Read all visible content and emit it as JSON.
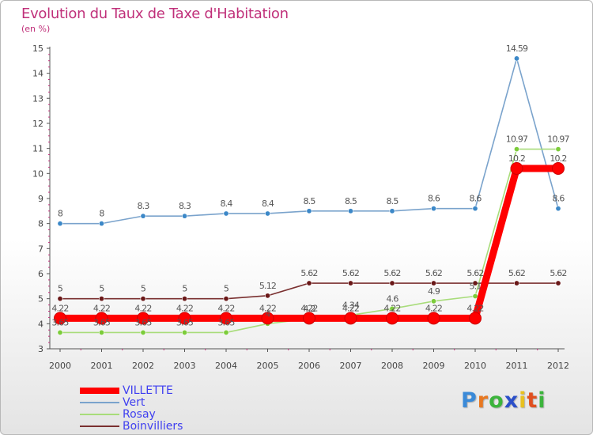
{
  "chart_data": {
    "type": "line",
    "title": "Evolution du Taux de Taxe d'Habitation",
    "subtitle": "(en %)",
    "x": [
      "2000",
      "2001",
      "2002",
      "2003",
      "2004",
      "2005",
      "2006",
      "2007",
      "2008",
      "2009",
      "2010",
      "2011",
      "2012"
    ],
    "ylim": [
      3,
      15
    ],
    "yticks": [
      3,
      4,
      5,
      6,
      7,
      8,
      9,
      10,
      11,
      12,
      13,
      14,
      15
    ],
    "grid": false,
    "legend_position": "bottom-left",
    "series": [
      {
        "name": "VILLETTE",
        "color": "#ff0000",
        "values": [
          4.22,
          4.22,
          4.22,
          4.22,
          4.22,
          4.22,
          4.22,
          4.22,
          4.22,
          4.22,
          4.22,
          10.2,
          10.2
        ],
        "labels": [
          "4.22",
          "4.22",
          "4.22",
          "4.22",
          "4.22",
          "4.22",
          "4.22",
          "4.22",
          "4.22",
          "4.22",
          "4.22",
          "10.2",
          "10.2"
        ]
      },
      {
        "name": "Vert",
        "color": "#7aa3cc",
        "marker": "#3c88c8",
        "values": [
          8,
          8,
          8.3,
          8.3,
          8.4,
          8.4,
          8.5,
          8.5,
          8.5,
          8.6,
          8.6,
          14.59,
          8.6
        ],
        "labels": [
          "8",
          "8",
          "8.3",
          "8.3",
          "8.4",
          "8.4",
          "8.5",
          "8.5",
          "8.5",
          "8.6",
          "8.6",
          "14.59",
          "8.6"
        ]
      },
      {
        "name": "Rosay",
        "color": "#a8dc7a",
        "marker": "#7ccc3a",
        "values": [
          3.65,
          3.65,
          3.65,
          3.65,
          3.65,
          4,
          4.2,
          4.34,
          4.6,
          4.9,
          5.1,
          10.97,
          10.97
        ],
        "labels": [
          "3.65",
          "3.65",
          "3.65",
          "3.65",
          "3.65",
          "4",
          "4.2",
          "4.34",
          "4.6",
          "4.9",
          "5.1",
          "10.97",
          "10.97"
        ]
      },
      {
        "name": "Boinvilliers",
        "color": "#7a3030",
        "marker": "#6a1818",
        "values": [
          5,
          5,
          5,
          5,
          5,
          5.12,
          5.62,
          5.62,
          5.62,
          5.62,
          5.62,
          5.62,
          5.62
        ],
        "labels": [
          "5",
          "5",
          "5",
          "5",
          "5",
          "5.12",
          "5.62",
          "5.62",
          "5.62",
          "5.62",
          "5.62",
          "5.62",
          "5.62"
        ]
      }
    ]
  },
  "logo": {
    "letters": [
      "P",
      "r",
      "o",
      "x",
      "i",
      "t",
      "i"
    ],
    "colors": [
      "#3a8ad8",
      "#e87820",
      "#3cb43c",
      "#2b4fc9",
      "#e8c020",
      "#e05020",
      "#3cb43c"
    ]
  }
}
